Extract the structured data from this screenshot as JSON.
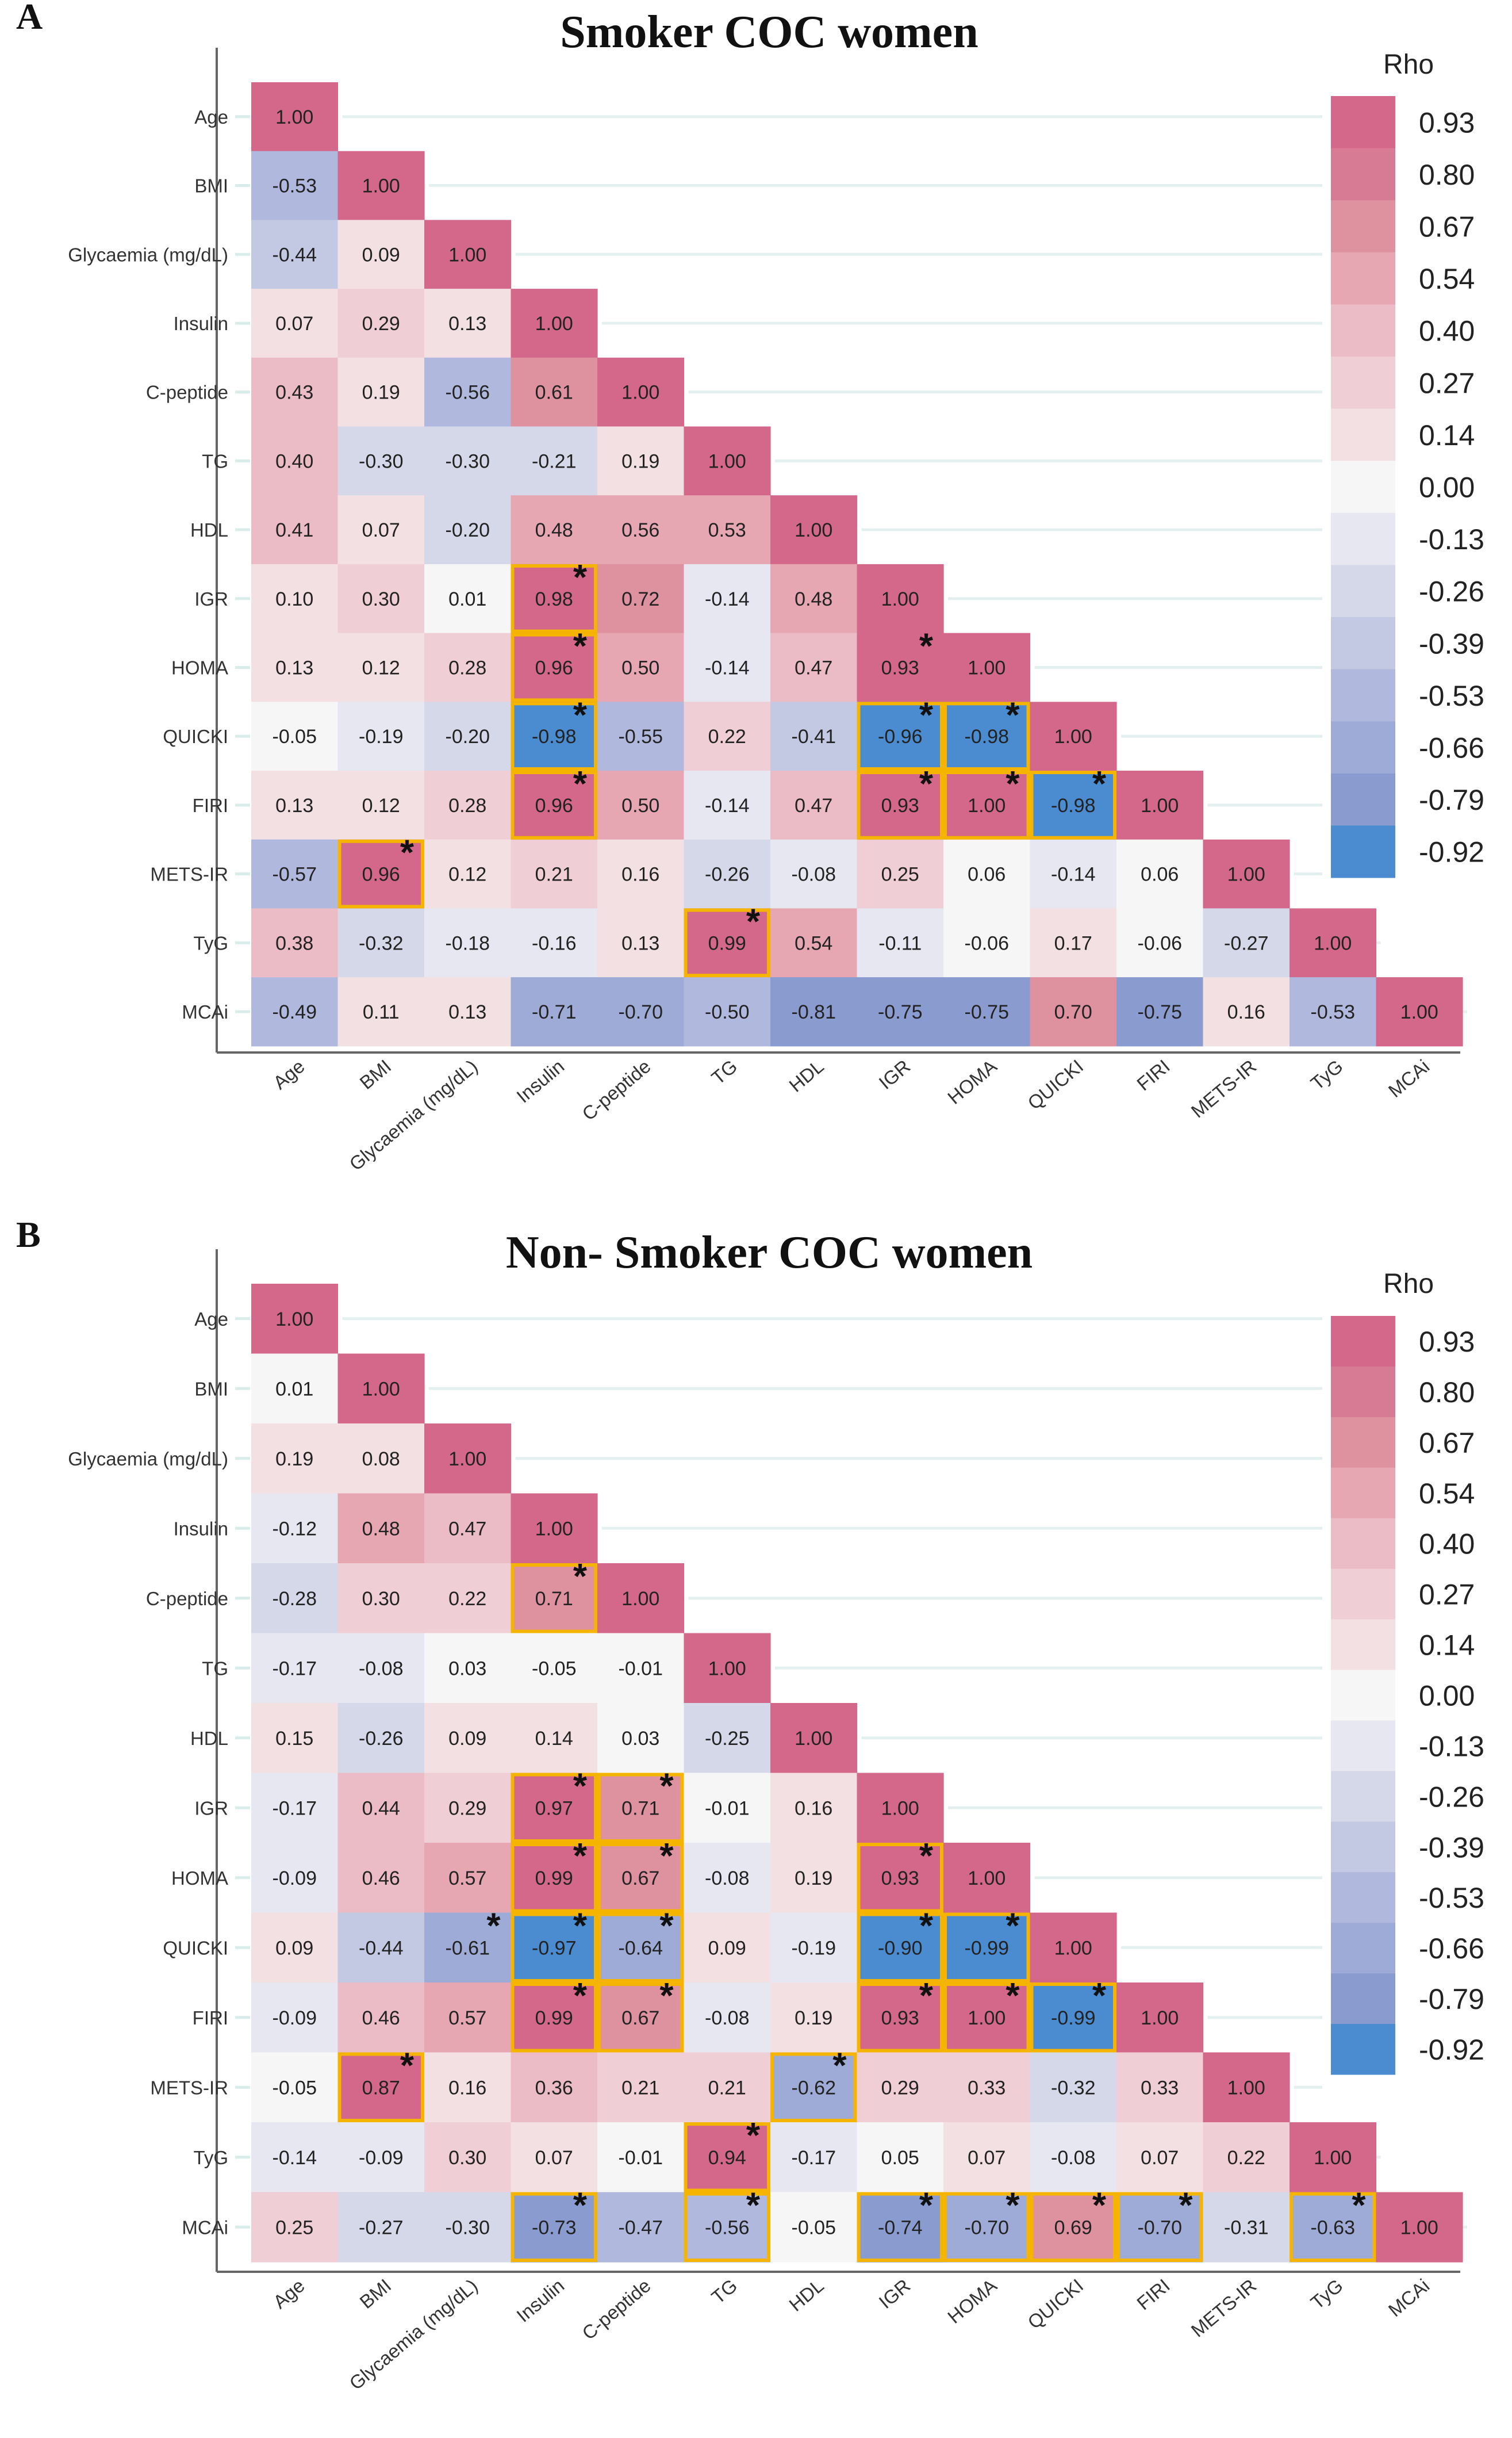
{
  "chart_data": [
    {
      "type": "heatmap",
      "panel_label": "A",
      "title": "Smoker COC women",
      "legend_title": "Rho",
      "legend_placement": "right",
      "variables": [
        "Age",
        "BMI",
        "Glycaemia (mg/dL)",
        "Insulin",
        "C-peptide",
        "TG",
        "HDL",
        "IGR",
        "HOMA",
        "QUICKI",
        "FIRI",
        "METS-IR",
        "TyG",
        "MCAi"
      ],
      "matrix": [
        [
          "1.00"
        ],
        [
          "-0.53",
          "1.00"
        ],
        [
          "-0.44",
          "0.09",
          "1.00"
        ],
        [
          "0.07",
          "0.29",
          "0.13",
          "1.00"
        ],
        [
          "0.43",
          "0.19",
          "-0.56",
          "0.61",
          "1.00"
        ],
        [
          "0.40",
          "-0.30",
          "-0.30",
          "-0.21",
          "0.19",
          "1.00"
        ],
        [
          "0.41",
          "0.07",
          "-0.20",
          "0.48",
          "0.56",
          "0.53",
          "1.00"
        ],
        [
          "0.10",
          "0.30",
          "0.01",
          "0.98",
          "0.72",
          "-0.14",
          "0.48",
          "1.00"
        ],
        [
          "0.13",
          "0.12",
          "0.28",
          "0.96",
          "0.50",
          "-0.14",
          "0.47",
          "0.93",
          "1.00"
        ],
        [
          "-0.05",
          "-0.19",
          "-0.20",
          "-0.98",
          "-0.55",
          "0.22",
          "-0.41",
          "-0.96",
          "-0.98",
          "1.00"
        ],
        [
          "0.13",
          "0.12",
          "0.28",
          "0.96",
          "0.50",
          "-0.14",
          "0.47",
          "0.93",
          "1.00",
          "-0.98",
          "1.00"
        ],
        [
          "-0.57",
          "0.96",
          "0.12",
          "0.21",
          "0.16",
          "-0.26",
          "-0.08",
          "0.25",
          "0.06",
          "-0.14",
          "0.06",
          "1.00"
        ],
        [
          "0.38",
          "-0.32",
          "-0.18",
          "-0.16",
          "0.13",
          "0.99",
          "0.54",
          "-0.11",
          "-0.06",
          "0.17",
          "-0.06",
          "-0.27",
          "1.00"
        ],
        [
          "-0.49",
          "0.11",
          "0.13",
          "-0.71",
          "-0.70",
          "-0.50",
          "-0.81",
          "-0.75",
          "-0.75",
          "0.70",
          "-0.75",
          "0.16",
          "-0.53",
          "1.00"
        ]
      ],
      "significant_boxed": [
        [
          7,
          3
        ],
        [
          8,
          3
        ],
        [
          9,
          3
        ],
        [
          10,
          3
        ],
        [
          11,
          1
        ],
        [
          12,
          5
        ],
        [
          9,
          7
        ],
        [
          9,
          8
        ],
        [
          10,
          7
        ],
        [
          10,
          8
        ],
        [
          10,
          9
        ]
      ],
      "significant_unboxed": [
        [
          8,
          7
        ]
      ]
    },
    {
      "type": "heatmap",
      "panel_label": "B",
      "title": "Non- Smoker COC women",
      "legend_title": "Rho",
      "legend_placement": "right",
      "variables": [
        "Age",
        "BMI",
        "Glycaemia (mg/dL)",
        "Insulin",
        "C-peptide",
        "TG",
        "HDL",
        "IGR",
        "HOMA",
        "QUICKI",
        "FIRI",
        "METS-IR",
        "TyG",
        "MCAi"
      ],
      "matrix": [
        [
          "1.00"
        ],
        [
          "0.01",
          "1.00"
        ],
        [
          "0.19",
          "0.08",
          "1.00"
        ],
        [
          "-0.12",
          "0.48",
          "0.47",
          "1.00"
        ],
        [
          "-0.28",
          "0.30",
          "0.22",
          "0.71",
          "1.00"
        ],
        [
          "-0.17",
          "-0.08",
          "0.03",
          "-0.05",
          "-0.01",
          "1.00"
        ],
        [
          "0.15",
          "-0.26",
          "0.09",
          "0.14",
          "0.03",
          "-0.25",
          "1.00"
        ],
        [
          "-0.17",
          "0.44",
          "0.29",
          "0.97",
          "0.71",
          "-0.01",
          "0.16",
          "1.00"
        ],
        [
          "-0.09",
          "0.46",
          "0.57",
          "0.99",
          "0.67",
          "-0.08",
          "0.19",
          "0.93",
          "1.00"
        ],
        [
          "0.09",
          "-0.44",
          "-0.61",
          "-0.97",
          "-0.64",
          "0.09",
          "-0.19",
          "-0.90",
          "-0.99",
          "1.00"
        ],
        [
          "-0.09",
          "0.46",
          "0.57",
          "0.99",
          "0.67",
          "-0.08",
          "0.19",
          "0.93",
          "1.00",
          "-0.99",
          "1.00"
        ],
        [
          "-0.05",
          "0.87",
          "0.16",
          "0.36",
          "0.21",
          "0.21",
          "-0.62",
          "0.29",
          "0.33",
          "-0.32",
          "0.33",
          "1.00"
        ],
        [
          "-0.14",
          "-0.09",
          "0.30",
          "0.07",
          "-0.01",
          "0.94",
          "-0.17",
          "0.05",
          "0.07",
          "-0.08",
          "0.07",
          "0.22",
          "1.00"
        ],
        [
          "0.25",
          "-0.27",
          "-0.30",
          "-0.73",
          "-0.47",
          "-0.56",
          "-0.05",
          "-0.74",
          "-0.70",
          "0.69",
          "-0.70",
          "-0.31",
          "-0.63",
          "1.00"
        ]
      ],
      "significant_boxed": [
        [
          4,
          3
        ],
        [
          7,
          3
        ],
        [
          7,
          4
        ],
        [
          8,
          3
        ],
        [
          8,
          4
        ],
        [
          9,
          3
        ],
        [
          9,
          4
        ],
        [
          10,
          3
        ],
        [
          10,
          4
        ],
        [
          11,
          1
        ],
        [
          11,
          6
        ],
        [
          12,
          5
        ],
        [
          13,
          3
        ],
        [
          13,
          5
        ],
        [
          13,
          7
        ],
        [
          13,
          8
        ],
        [
          13,
          9
        ],
        [
          13,
          10
        ],
        [
          13,
          12
        ],
        [
          8,
          7
        ],
        [
          9,
          7
        ],
        [
          9,
          8
        ],
        [
          10,
          7
        ],
        [
          10,
          8
        ],
        [
          10,
          9
        ]
      ],
      "significant_unboxed": [
        [
          9,
          2
        ]
      ]
    }
  ],
  "legend": {
    "ticks": [
      "0.93",
      "0.80",
      "0.67",
      "0.54",
      "0.40",
      "0.27",
      "0.14",
      "0.00",
      "-0.13",
      "-0.26",
      "-0.39",
      "-0.53",
      "-0.66",
      "-0.79",
      "-0.92"
    ],
    "colors": [
      "#d4688a",
      "#d77a93",
      "#de919f",
      "#e6a7b3",
      "#ecbcc6",
      "#f0ced5",
      "#f3e0e3",
      "#f6f6f6",
      "#e6e7f1",
      "#d5d8e8",
      "#c3c8e3",
      "#b0b9dd",
      "#9eabd6",
      "#8a9bcf",
      "#4b8bcf"
    ]
  },
  "significance_marker": "*",
  "highlight_color": "#f5b400"
}
